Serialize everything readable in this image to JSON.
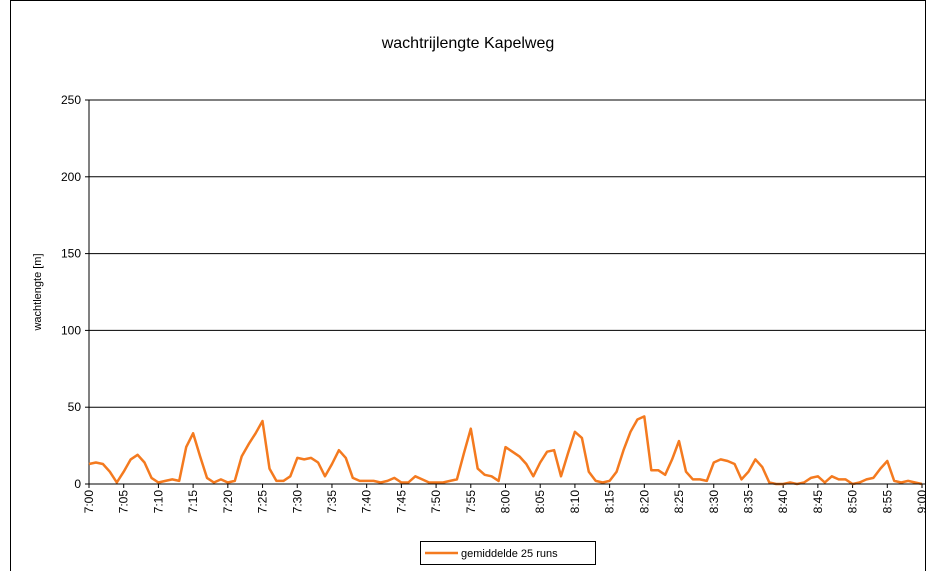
{
  "chart_data": {
    "type": "line",
    "title": "wachtrijlengte Kapelweg",
    "y_label": "wachtlengte [m]",
    "categories": [
      "7:00",
      null,
      null,
      null,
      null,
      "7:05",
      null,
      null,
      null,
      null,
      "7:10",
      null,
      null,
      null,
      null,
      "7:15",
      null,
      null,
      null,
      null,
      "7:20",
      null,
      null,
      null,
      null,
      "7:25",
      null,
      null,
      null,
      null,
      "7:30",
      null,
      null,
      null,
      null,
      "7:35",
      null,
      null,
      null,
      null,
      "7:40",
      null,
      null,
      null,
      null,
      "7:45",
      null,
      null,
      null,
      null,
      "7:50",
      null,
      null,
      null,
      null,
      "7:55",
      null,
      null,
      null,
      null,
      "8:00",
      null,
      null,
      null,
      null,
      "8:05",
      null,
      null,
      null,
      null,
      "8:10",
      null,
      null,
      null,
      null,
      "8:15",
      null,
      null,
      null,
      null,
      "8:20",
      null,
      null,
      null,
      null,
      "8:25",
      null,
      null,
      null,
      null,
      "8:30",
      null,
      null,
      null,
      null,
      "8:35",
      null,
      null,
      null,
      null,
      "8:40",
      null,
      null,
      null,
      null,
      "8:45",
      null,
      null,
      null,
      null,
      "8:50",
      null,
      null,
      null,
      null,
      "8:55",
      null,
      null,
      null,
      null,
      "9:00"
    ],
    "series": [
      {
        "name": "gemiddelde 25 runs",
        "color": "#f47a1f",
        "values": [
          13,
          14,
          13,
          8,
          1,
          8,
          16,
          19,
          14,
          4,
          1,
          2,
          3,
          2,
          24,
          33,
          18,
          4,
          1,
          3,
          1,
          2,
          18,
          26,
          33,
          41,
          10,
          2,
          2,
          5,
          17,
          16,
          17,
          14,
          5,
          13,
          22,
          17,
          4,
          2,
          2,
          2,
          1,
          2,
          4,
          1,
          1,
          5,
          3,
          1,
          1,
          1,
          2,
          3,
          20,
          36,
          10,
          6,
          5,
          2,
          24,
          21,
          18,
          13,
          5,
          14,
          21,
          22,
          5,
          20,
          34,
          30,
          8,
          2,
          1,
          2,
          8,
          22,
          34,
          42,
          44,
          9,
          9,
          6,
          16,
          28,
          8,
          3,
          3,
          2,
          14,
          16,
          15,
          13,
          3,
          8,
          16,
          11,
          1,
          0,
          0,
          1,
          0,
          1,
          4,
          5,
          1,
          5,
          3,
          3,
          0,
          1,
          3,
          4,
          10,
          15,
          2,
          1,
          2,
          1,
          0
        ]
      }
    ],
    "ylim": [
      0,
      250
    ],
    "yticks": [
      0,
      50,
      100,
      150,
      200,
      250
    ],
    "grid": true
  }
}
